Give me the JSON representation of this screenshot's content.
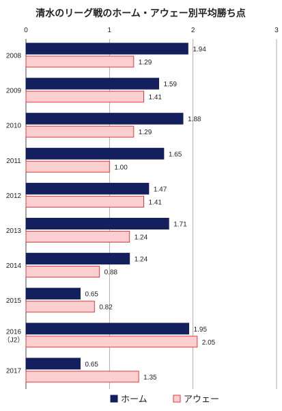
{
  "chart_data": {
    "type": "bar",
    "orientation": "horizontal",
    "title": "清水のリーグ戦のホーム・アウェー別平均勝ち点",
    "categories": [
      "2008",
      "2009",
      "2010",
      "2011",
      "2012",
      "2013",
      "2014",
      "2015",
      "2016",
      "2017"
    ],
    "category_sublabels": {
      "2016": "（J2）"
    },
    "xlim": [
      0,
      3
    ],
    "xticks": [
      "0",
      "1",
      "2",
      "3"
    ],
    "grid": true,
    "legend_position": "bottom",
    "series": [
      {
        "name": "ホーム",
        "color": "#14205e",
        "border": "#14205e",
        "values": [
          1.94,
          1.59,
          1.88,
          1.65,
          1.47,
          1.71,
          1.24,
          0.65,
          1.95,
          0.65
        ],
        "labels": [
          "1.94",
          "1.59",
          "1.88",
          "1.65",
          "1.47",
          "1.71",
          "1.24",
          "0.65",
          "1.95",
          "0.65"
        ]
      },
      {
        "name": "アウェー",
        "color": "#fbcfcf",
        "border": "#e0393f",
        "values": [
          1.29,
          1.41,
          1.29,
          1.0,
          1.41,
          1.24,
          0.88,
          0.82,
          2.05,
          1.35
        ],
        "labels": [
          "1.29",
          "1.41",
          "1.29",
          "1.00",
          "1.41",
          "1.24",
          "0.88",
          "0.82",
          "2.05",
          "1.35"
        ]
      }
    ]
  }
}
